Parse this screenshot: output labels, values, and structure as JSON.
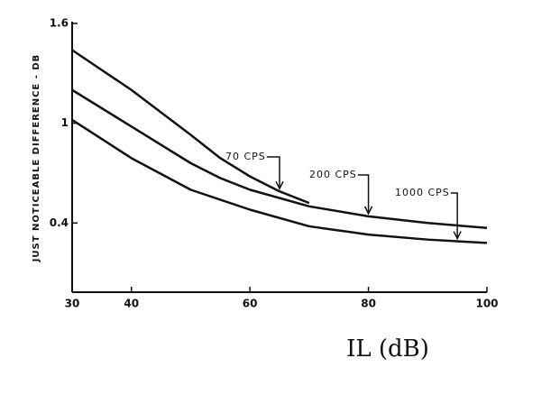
{
  "chart_data": {
    "type": "line",
    "x_label": "IL (dB)",
    "y_label": "JUST NOTICEABLE DIFFERENCE - DB",
    "xlim": [
      30,
      100
    ],
    "ylim": [
      0,
      1.6
    ],
    "xticks": [
      30,
      40,
      60,
      80,
      100
    ],
    "yticks": [
      0.4,
      1.0,
      1.6
    ],
    "series": [
      {
        "name": "70 CPS",
        "color": "#111111",
        "x": [
          30,
          40,
          50,
          55,
          60,
          65,
          70
        ],
        "values": [
          1.44,
          1.2,
          0.93,
          0.79,
          0.68,
          0.59,
          0.52
        ]
      },
      {
        "name": "200 CPS",
        "color": "#111111",
        "x": [
          30,
          40,
          50,
          55,
          60,
          70,
          80,
          90,
          100
        ],
        "values": [
          1.2,
          0.98,
          0.76,
          0.67,
          0.6,
          0.5,
          0.44,
          0.4,
          0.37
        ]
      },
      {
        "name": "1000 CPS",
        "color": "#111111",
        "x": [
          30,
          40,
          50,
          60,
          70,
          80,
          90,
          100
        ],
        "values": [
          1.02,
          0.79,
          0.6,
          0.48,
          0.38,
          0.33,
          0.3,
          0.28
        ]
      }
    ]
  }
}
